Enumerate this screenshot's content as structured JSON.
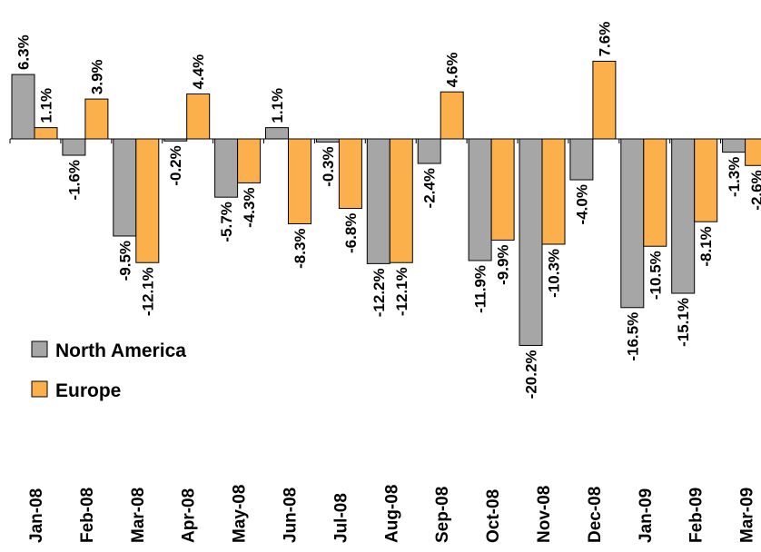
{
  "chart_data": {
    "type": "bar",
    "title": "",
    "xlabel": "",
    "ylabel": "",
    "unit": "%",
    "categories": [
      "Jan-08",
      "Feb-08",
      "Mar-08",
      "Apr-08",
      "May-08",
      "Jun-08",
      "Jul-08",
      "Aug-08",
      "Sep-08",
      "Oct-08",
      "Nov-08",
      "Dec-08",
      "Jan-09",
      "Feb-09",
      "Mar-09"
    ],
    "series": [
      {
        "name": "North America",
        "color": "#a6a6a6",
        "values": [
          6.3,
          -1.6,
          -9.5,
          -0.2,
          -5.7,
          1.1,
          -0.3,
          -12.2,
          -2.4,
          -11.9,
          -20.2,
          -4.0,
          -16.5,
          -15.1,
          -1.3
        ],
        "labels": [
          "6.3%",
          "-1.6%",
          "-9.5%",
          "-0.2%",
          "-5.7%",
          "1.1%",
          "-0.3%",
          "-12.2%",
          "-2.4%",
          "-11.9%",
          "-20.2%",
          "-4.0%",
          "-16.5%",
          "-15.1%",
          "-1.3%"
        ]
      },
      {
        "name": "Europe",
        "color": "#fbb04c",
        "values": [
          1.1,
          3.9,
          -12.1,
          4.4,
          -4.3,
          -8.3,
          -6.8,
          -12.1,
          4.6,
          -9.9,
          -10.3,
          7.6,
          -10.5,
          -8.1,
          -2.6
        ],
        "labels": [
          "1.1%",
          "3.9%",
          "-12.1%",
          "4.4%",
          "-4.3%",
          "-8.3%",
          "-6.8%",
          "-12.1%",
          "4.6%",
          "-9.9%",
          "-10.3%",
          "7.6%",
          "-10.5%",
          "-8.1%",
          "-2.6%"
        ]
      }
    ],
    "ylim": [
      -20.2,
      7.6
    ],
    "grid": false,
    "legend_position": "bottom-left",
    "value_labels": "rotated vertical"
  }
}
